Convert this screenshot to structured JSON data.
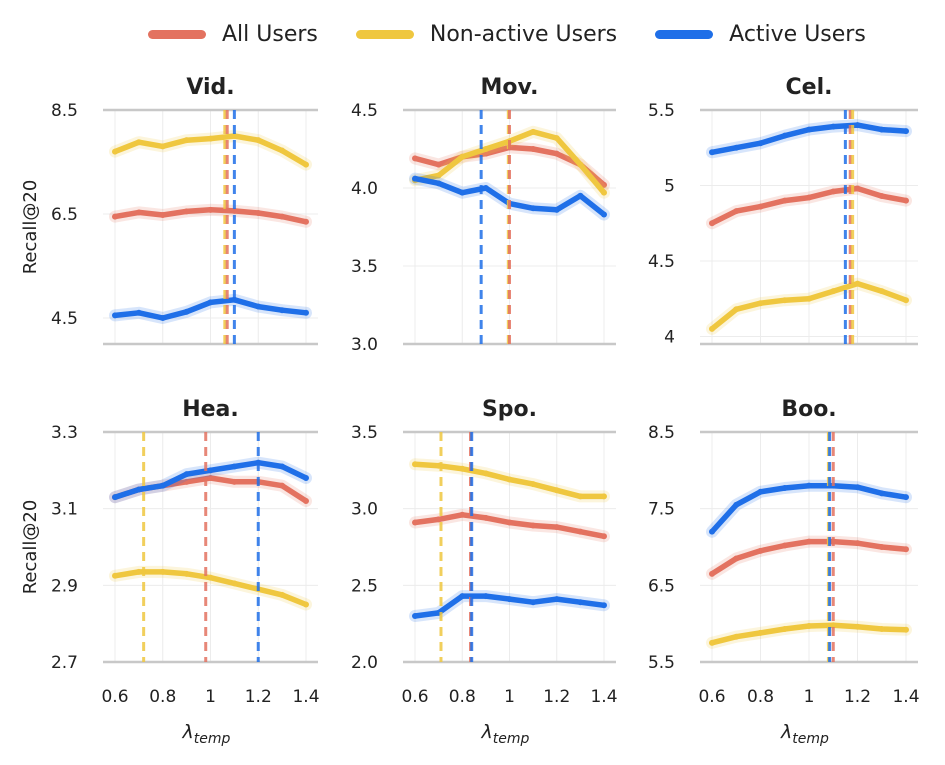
{
  "colors": {
    "all": "#E37260",
    "nonactive": "#EFC73F",
    "active": "#1F6FE8"
  },
  "legend": [
    {
      "key": "all",
      "label": "All Users"
    },
    {
      "key": "nonactive",
      "label": "Non-active Users"
    },
    {
      "key": "active",
      "label": "Active Users"
    }
  ],
  "chart_data": [
    {
      "type": "line",
      "title": "Vid.",
      "ylabel": "Recall@20",
      "xlabel": "λ",
      "xlabel_sub": "temp",
      "xlim": [
        0.6,
        1.4
      ],
      "ylim": [
        4.0,
        8.5
      ],
      "yticks": [
        4.5,
        6.5,
        8.5
      ],
      "ytick_labels": [
        "4.5",
        "6.5",
        "8.5"
      ],
      "xticks": [
        0.6,
        0.8,
        1.0,
        1.2,
        1.4
      ],
      "xtick_labels": [
        "0.6",
        "0.8",
        "1",
        "1.2",
        "1.4"
      ],
      "show_ylabel": true,
      "show_xticklabels": false,
      "show_xlabel": false,
      "x": [
        0.6,
        0.7,
        0.8,
        0.9,
        1.0,
        1.1,
        1.2,
        1.3,
        1.4
      ],
      "series": [
        {
          "name": "All Users",
          "key": "all",
          "values": [
            6.45,
            6.53,
            6.48,
            6.55,
            6.58,
            6.56,
            6.52,
            6.45,
            6.35
          ]
        },
        {
          "name": "Non-active Users",
          "key": "nonactive",
          "values": [
            7.7,
            7.88,
            7.8,
            7.92,
            7.95,
            8.0,
            7.92,
            7.72,
            7.45
          ]
        },
        {
          "name": "Active Users",
          "key": "active",
          "values": [
            4.55,
            4.6,
            4.5,
            4.62,
            4.8,
            4.85,
            4.72,
            4.65,
            4.6
          ]
        }
      ],
      "vlines": [
        {
          "key": "nonactive",
          "x": 1.06
        },
        {
          "key": "all",
          "x": 1.07
        },
        {
          "key": "active",
          "x": 1.1
        }
      ]
    },
    {
      "type": "line",
      "title": "Mov.",
      "ylabel": "",
      "xlabel": "λ",
      "xlabel_sub": "temp",
      "xlim": [
        0.6,
        1.4
      ],
      "ylim": [
        3.0,
        4.5
      ],
      "yticks": [
        3.0,
        3.5,
        4.0,
        4.5
      ],
      "ytick_labels": [
        "3.0",
        "3.5",
        "4.0",
        "4.5"
      ],
      "xticks": [
        0.6,
        0.8,
        1.0,
        1.2,
        1.4
      ],
      "xtick_labels": [
        "0.6",
        "0.8",
        "1",
        "1.2",
        "1.4"
      ],
      "show_ylabel": false,
      "show_xticklabels": false,
      "show_xlabel": false,
      "x": [
        0.6,
        0.7,
        0.8,
        0.9,
        1.0,
        1.1,
        1.2,
        1.3,
        1.4
      ],
      "series": [
        {
          "name": "All Users",
          "key": "all",
          "values": [
            4.19,
            4.15,
            4.2,
            4.22,
            4.26,
            4.25,
            4.22,
            4.15,
            4.02
          ]
        },
        {
          "name": "Non-active Users",
          "key": "nonactive",
          "values": [
            4.05,
            4.08,
            4.2,
            4.25,
            4.3,
            4.36,
            4.32,
            4.15,
            3.97
          ]
        },
        {
          "name": "Active Users",
          "key": "active",
          "values": [
            4.06,
            4.03,
            3.97,
            4.0,
            3.9,
            3.87,
            3.86,
            3.95,
            3.83
          ]
        }
      ],
      "vlines": [
        {
          "key": "active",
          "x": 0.88
        },
        {
          "key": "nonactive",
          "x": 0.995
        },
        {
          "key": "all",
          "x": 1.0
        }
      ]
    },
    {
      "type": "line",
      "title": "Cel.",
      "ylabel": "",
      "xlabel": "λ",
      "xlabel_sub": "temp",
      "xlim": [
        0.6,
        1.4
      ],
      "ylim": [
        3.95,
        5.5
      ],
      "yticks": [
        4.0,
        4.5,
        5.0,
        5.5
      ],
      "ytick_labels": [
        "4",
        "4.5",
        "5",
        "5.5"
      ],
      "xticks": [
        0.6,
        0.8,
        1.0,
        1.2,
        1.4
      ],
      "xtick_labels": [
        "0.6",
        "0.8",
        "1",
        "1.2",
        "1.4"
      ],
      "show_ylabel": false,
      "show_xticklabels": false,
      "show_xlabel": false,
      "x": [
        0.6,
        0.7,
        0.8,
        0.9,
        1.0,
        1.1,
        1.2,
        1.3,
        1.4
      ],
      "series": [
        {
          "name": "All Users",
          "key": "all",
          "values": [
            4.75,
            4.83,
            4.86,
            4.9,
            4.92,
            4.96,
            4.98,
            4.93,
            4.9
          ]
        },
        {
          "name": "Non-active Users",
          "key": "nonactive",
          "values": [
            4.05,
            4.18,
            4.22,
            4.24,
            4.25,
            4.3,
            4.35,
            4.3,
            4.24
          ]
        },
        {
          "name": "Active Users",
          "key": "active",
          "values": [
            5.22,
            5.25,
            5.28,
            5.33,
            5.37,
            5.39,
            5.4,
            5.37,
            5.36
          ]
        }
      ],
      "vlines": [
        {
          "key": "active",
          "x": 1.15
        },
        {
          "key": "all",
          "x": 1.17
        },
        {
          "key": "nonactive",
          "x": 1.18
        }
      ]
    },
    {
      "type": "line",
      "title": "Hea.",
      "ylabel": "Recall@20",
      "xlabel": "λ",
      "xlabel_sub": "temp",
      "xlim": [
        0.6,
        1.4
      ],
      "ylim": [
        2.7,
        3.3
      ],
      "yticks": [
        2.7,
        2.9,
        3.1,
        3.3
      ],
      "ytick_labels": [
        "2.7",
        "2.9",
        "3.1",
        "3.3"
      ],
      "xticks": [
        0.6,
        0.8,
        1.0,
        1.2,
        1.4
      ],
      "xtick_labels": [
        "0.6",
        "0.8",
        "1",
        "1.2",
        "1.4"
      ],
      "show_ylabel": true,
      "show_xticklabels": true,
      "show_xlabel": true,
      "x": [
        0.6,
        0.7,
        0.8,
        0.9,
        1.0,
        1.1,
        1.2,
        1.3,
        1.4
      ],
      "series": [
        {
          "name": "All Users",
          "key": "all",
          "values": [
            3.13,
            3.15,
            3.16,
            3.17,
            3.18,
            3.17,
            3.17,
            3.16,
            3.12
          ]
        },
        {
          "name": "Non-active Users",
          "key": "nonactive",
          "values": [
            2.925,
            2.935,
            2.935,
            2.93,
            2.92,
            2.905,
            2.89,
            2.875,
            2.85
          ]
        },
        {
          "name": "Active Users",
          "key": "active",
          "values": [
            3.13,
            3.15,
            3.16,
            3.19,
            3.2,
            3.21,
            3.22,
            3.21,
            3.18
          ]
        }
      ],
      "vlines": [
        {
          "key": "nonactive",
          "x": 0.72
        },
        {
          "key": "all",
          "x": 0.98
        },
        {
          "key": "active",
          "x": 1.2
        }
      ]
    },
    {
      "type": "line",
      "title": "Spo.",
      "ylabel": "",
      "xlabel": "λ",
      "xlabel_sub": "temp",
      "xlim": [
        0.6,
        1.4
      ],
      "ylim": [
        2.0,
        3.5
      ],
      "yticks": [
        2.0,
        2.5,
        3.0,
        3.5
      ],
      "ytick_labels": [
        "2.0",
        "2.5",
        "3.0",
        "3.5"
      ],
      "xticks": [
        0.6,
        0.8,
        1.0,
        1.2,
        1.4
      ],
      "xtick_labels": [
        "0.6",
        "0.8",
        "1",
        "1.2",
        "1.4"
      ],
      "show_ylabel": false,
      "show_xticklabels": true,
      "show_xlabel": true,
      "x": [
        0.6,
        0.7,
        0.8,
        0.9,
        1.0,
        1.1,
        1.2,
        1.3,
        1.4
      ],
      "series": [
        {
          "name": "All Users",
          "key": "all",
          "values": [
            2.91,
            2.93,
            2.96,
            2.94,
            2.91,
            2.89,
            2.88,
            2.85,
            2.82
          ]
        },
        {
          "name": "Non-active Users",
          "key": "nonactive",
          "values": [
            3.29,
            3.28,
            3.26,
            3.23,
            3.19,
            3.16,
            3.12,
            3.08,
            3.08
          ]
        },
        {
          "name": "Active Users",
          "key": "active",
          "values": [
            2.3,
            2.32,
            2.43,
            2.43,
            2.41,
            2.39,
            2.41,
            2.39,
            2.37
          ]
        }
      ],
      "vlines": [
        {
          "key": "nonactive",
          "x": 0.71
        },
        {
          "key": "all",
          "x": 0.835
        },
        {
          "key": "active",
          "x": 0.84
        }
      ]
    },
    {
      "type": "line",
      "title": "Boo.",
      "ylabel": "",
      "xlabel": "λ",
      "xlabel_sub": "temp",
      "xlim": [
        0.6,
        1.4
      ],
      "ylim": [
        5.5,
        8.5
      ],
      "yticks": [
        5.5,
        6.5,
        7.5,
        8.5
      ],
      "ytick_labels": [
        "5.5",
        "6.5",
        "7.5",
        "8.5"
      ],
      "xticks": [
        0.6,
        0.8,
        1.0,
        1.2,
        1.4
      ],
      "xtick_labels": [
        "0.6",
        "0.8",
        "1",
        "1.2",
        "1.4"
      ],
      "show_ylabel": false,
      "show_xticklabels": true,
      "show_xlabel": true,
      "x": [
        0.6,
        0.7,
        0.8,
        0.9,
        1.0,
        1.1,
        1.2,
        1.3,
        1.4
      ],
      "series": [
        {
          "name": "All Users",
          "key": "all",
          "values": [
            6.65,
            6.85,
            6.95,
            7.02,
            7.07,
            7.07,
            7.05,
            7.0,
            6.97
          ]
        },
        {
          "name": "Non-active Users",
          "key": "nonactive",
          "values": [
            5.75,
            5.83,
            5.88,
            5.93,
            5.97,
            5.98,
            5.96,
            5.93,
            5.92
          ]
        },
        {
          "name": "Active Users",
          "key": "active",
          "values": [
            7.2,
            7.55,
            7.72,
            7.77,
            7.8,
            7.8,
            7.78,
            7.7,
            7.65
          ]
        }
      ],
      "vlines": [
        {
          "key": "nonactive",
          "x": 1.08
        },
        {
          "key": "active",
          "x": 1.085
        },
        {
          "key": "all",
          "x": 1.1
        }
      ]
    }
  ]
}
